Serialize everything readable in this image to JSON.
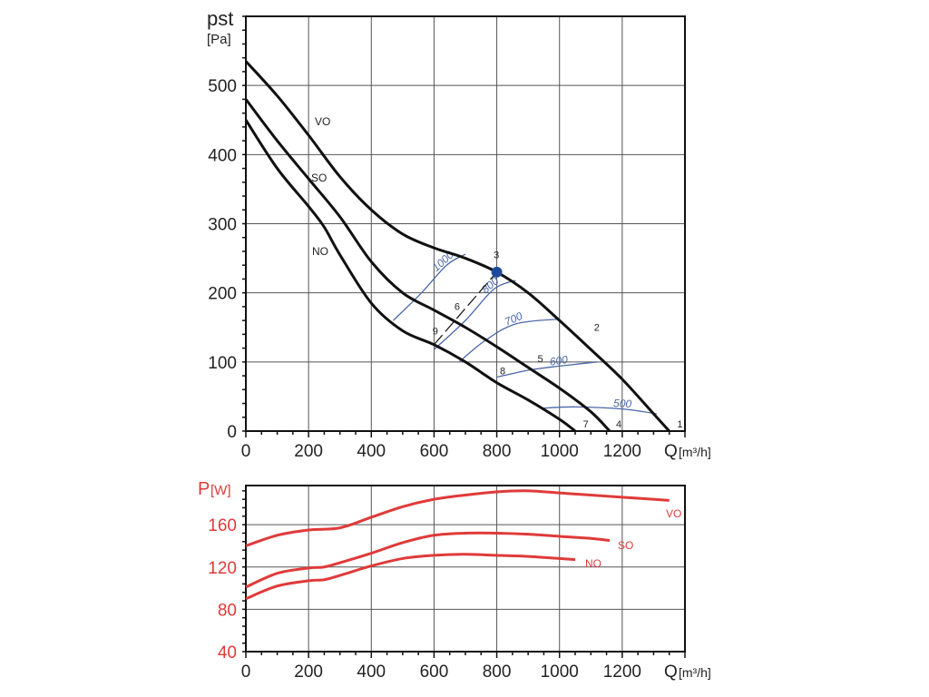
{
  "chart_data": [
    {
      "type": "line",
      "title": "",
      "ylabel": "pst",
      "ylabel_unit": "[Pa]",
      "xlabel": "Q",
      "xlabel_unit": "[m³/h]",
      "xlim": [
        0,
        1400
      ],
      "ylim": [
        0,
        600
      ],
      "xticks": [
        0,
        200,
        400,
        600,
        800,
        1000,
        1200
      ],
      "yticks": [
        0,
        100,
        200,
        300,
        400,
        500
      ],
      "grid": true,
      "series": [
        {
          "name": "VO",
          "points": [
            [
              0,
              535
            ],
            [
              100,
              485
            ],
            [
              200,
              428
            ],
            [
              300,
              368
            ],
            [
              400,
              320
            ],
            [
              500,
              285
            ],
            [
              600,
              265
            ],
            [
              700,
              250
            ],
            [
              800,
              230
            ],
            [
              900,
              200
            ],
            [
              1000,
              160
            ],
            [
              1100,
              118
            ],
            [
              1200,
              75
            ],
            [
              1300,
              25
            ],
            [
              1350,
              0
            ]
          ]
        },
        {
          "name": "SO",
          "points": [
            [
              0,
              480
            ],
            [
              100,
              420
            ],
            [
              200,
              365
            ],
            [
              300,
              310
            ],
            [
              400,
              245
            ],
            [
              500,
              200
            ],
            [
              600,
              175
            ],
            [
              700,
              150
            ],
            [
              800,
              122
            ],
            [
              900,
              92
            ],
            [
              1000,
              62
            ],
            [
              1100,
              28
            ],
            [
              1160,
              0
            ]
          ]
        },
        {
          "name": "NO",
          "points": [
            [
              0,
              450
            ],
            [
              100,
              380
            ],
            [
              200,
              325
            ],
            [
              250,
              295
            ],
            [
              300,
              255
            ],
            [
              400,
              185
            ],
            [
              500,
              145
            ],
            [
              600,
              125
            ],
            [
              700,
              100
            ],
            [
              800,
              70
            ],
            [
              900,
              45
            ],
            [
              1000,
              17
            ],
            [
              1050,
              0
            ]
          ]
        }
      ],
      "iso_lines": [
        {
          "label": "1000",
          "points": [
            [
              470,
              160
            ],
            [
              560,
              200
            ],
            [
              640,
              240
            ],
            [
              700,
              256
            ]
          ]
        },
        {
          "label": "800",
          "points": [
            [
              600,
              118
            ],
            [
              700,
              160
            ],
            [
              790,
              205
            ],
            [
              860,
              218
            ]
          ]
        },
        {
          "label": "700",
          "points": [
            [
              680,
              100
            ],
            [
              760,
              130
            ],
            [
              860,
              155
            ],
            [
              1000,
              162
            ]
          ]
        },
        {
          "label": "600",
          "points": [
            [
              800,
              78
            ],
            [
              900,
              88
            ],
            [
              1000,
              94
            ],
            [
              1120,
              100
            ]
          ]
        },
        {
          "label": "500",
          "points": [
            [
              940,
              33
            ],
            [
              1050,
              35
            ],
            [
              1200,
              32
            ],
            [
              1310,
              25
            ]
          ]
        }
      ],
      "operating_point": {
        "label": "3",
        "q": 800,
        "p": 230
      },
      "dashed_line": [
        [
          600,
          125
        ],
        [
          800,
          230
        ]
      ],
      "point_labels": [
        {
          "label": "1",
          "q": 1375,
          "p": 5
        },
        {
          "label": "2",
          "q": 1110,
          "p": 145
        },
        {
          "label": "3",
          "q": 790,
          "p": 250
        },
        {
          "label": "4",
          "q": 1180,
          "p": 5
        },
        {
          "label": "5",
          "q": 930,
          "p": 100
        },
        {
          "label": "6",
          "q": 665,
          "p": 175
        },
        {
          "label": "7",
          "q": 1075,
          "p": 5
        },
        {
          "label": "8",
          "q": 810,
          "p": 82
        },
        {
          "label": "9",
          "q": 595,
          "p": 140
        }
      ],
      "colors": {
        "curve": "#111111",
        "iso": "#4a68a8",
        "point": "#1f4a9c"
      }
    },
    {
      "type": "line",
      "ylabel": "P",
      "ylabel_unit": "[W]",
      "xlabel": "Q",
      "xlabel_unit": "[m³/h]",
      "xlim": [
        0,
        1400
      ],
      "ylim": [
        40,
        197
      ],
      "xticks": [
        0,
        200,
        400,
        600,
        800,
        1000,
        1200
      ],
      "yticks": [
        40,
        80,
        120,
        160
      ],
      "grid": true,
      "series": [
        {
          "name": "VO",
          "points": [
            [
              0,
              140
            ],
            [
              100,
              150
            ],
            [
              200,
              155
            ],
            [
              300,
              157
            ],
            [
              400,
              167
            ],
            [
              500,
              177
            ],
            [
              600,
              184
            ],
            [
              700,
              188
            ],
            [
              800,
              191
            ],
            [
              900,
              192
            ],
            [
              1000,
              190
            ],
            [
              1100,
              188
            ],
            [
              1200,
              186
            ],
            [
              1350,
              183
            ]
          ]
        },
        {
          "name": "SO",
          "points": [
            [
              0,
              101
            ],
            [
              100,
              114
            ],
            [
              200,
              119
            ],
            [
              250,
              120
            ],
            [
              300,
              124
            ],
            [
              400,
              133
            ],
            [
              500,
              143
            ],
            [
              600,
              150
            ],
            [
              700,
              152
            ],
            [
              800,
              152
            ],
            [
              900,
              151
            ],
            [
              1000,
              149
            ],
            [
              1100,
              147
            ],
            [
              1160,
              145
            ]
          ]
        },
        {
          "name": "NO",
          "points": [
            [
              0,
              90
            ],
            [
              100,
              102
            ],
            [
              200,
              107
            ],
            [
              250,
              108
            ],
            [
              300,
              112
            ],
            [
              400,
              121
            ],
            [
              500,
              128
            ],
            [
              600,
              131
            ],
            [
              700,
              132
            ],
            [
              800,
              131
            ],
            [
              900,
              130
            ],
            [
              1000,
              128
            ],
            [
              1050,
              127
            ]
          ]
        }
      ],
      "colors": {
        "curve": "#e03a3a",
        "axis_text": "#e03a3a"
      }
    }
  ]
}
